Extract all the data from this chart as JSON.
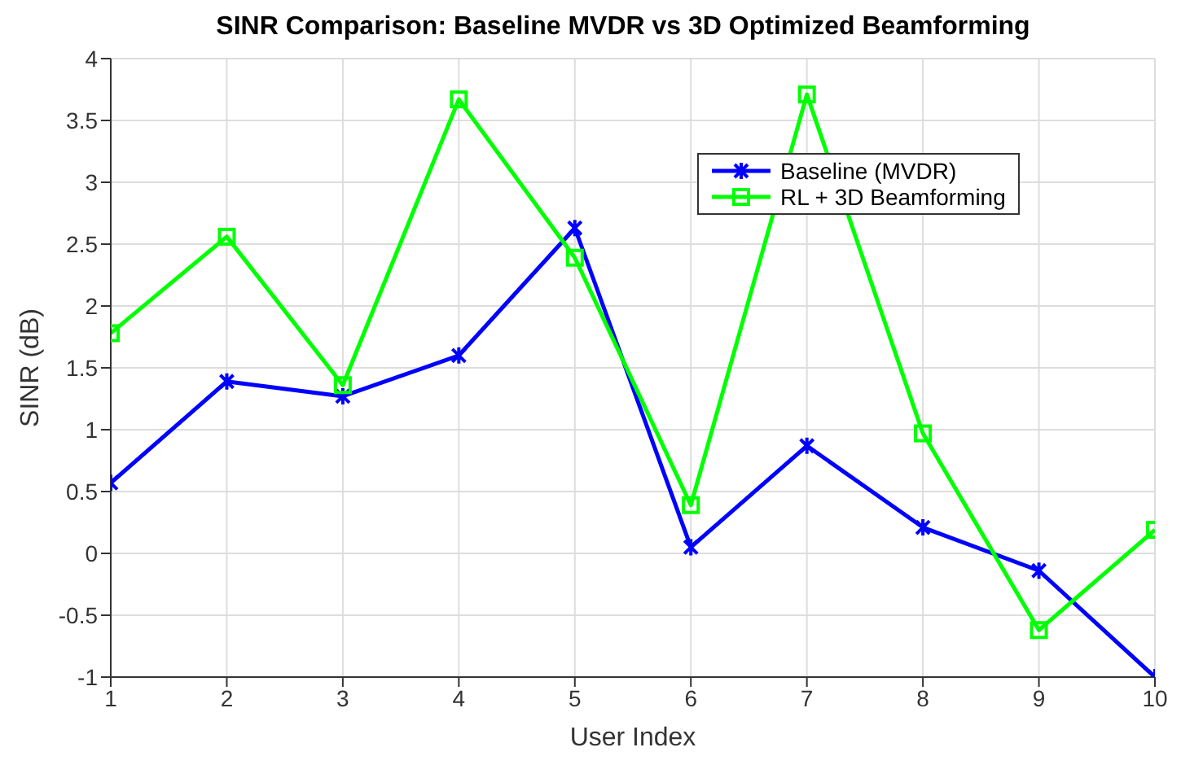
{
  "chart_data": {
    "type": "line",
    "title": "SINR Comparison: Baseline MVDR vs 3D Optimized Beamforming",
    "xlabel": "User Index",
    "ylabel": "SINR (dB)",
    "x": [
      1,
      2,
      3,
      4,
      5,
      6,
      7,
      8,
      9,
      10
    ],
    "series": [
      {
        "name": "Baseline (MVDR)",
        "color": "#0000ff",
        "marker": "cross",
        "values": [
          0.57,
          1.39,
          1.27,
          1.6,
          2.63,
          0.05,
          0.87,
          0.21,
          -0.14,
          -1
        ]
      },
      {
        "name": "RL + 3D Beamforming",
        "color": "#00ff00",
        "marker": "square",
        "values": [
          1.78,
          2.56,
          1.36,
          3.67,
          2.39,
          0.39,
          3.71,
          0.97,
          -0.62,
          0.19
        ]
      }
    ],
    "xlim": [
      1,
      10
    ],
    "xticks": [
      1,
      2,
      3,
      4,
      5,
      6,
      7,
      8,
      9,
      10
    ],
    "ylim": [
      -1,
      4
    ],
    "yticks": [
      -1,
      -0.5,
      0,
      0.5,
      1,
      1.5,
      2,
      2.5,
      3,
      3.5,
      4
    ],
    "grid": true,
    "legend": "top right",
    "line_style": "solid"
  }
}
